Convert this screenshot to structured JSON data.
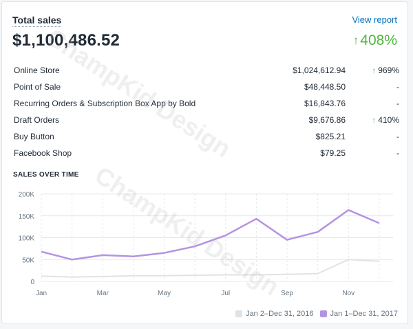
{
  "header": {
    "title": "Total sales",
    "view_report": "View report",
    "total": "$1,100,486.52",
    "growth": "408%"
  },
  "channels": [
    {
      "name": "Online Store",
      "amount": "$1,024,612.94",
      "change": "969%",
      "trend": "up"
    },
    {
      "name": "Point of Sale",
      "amount": "$48,448.50",
      "change": "-",
      "trend": "none"
    },
    {
      "name": "Recurring Orders & Subscription Box App by Bold",
      "amount": "$16,843.76",
      "change": "-",
      "trend": "none"
    },
    {
      "name": "Draft Orders",
      "amount": "$9,676.86",
      "change": "410%",
      "trend": "up"
    },
    {
      "name": "Buy Button",
      "amount": "$825.21",
      "change": "-",
      "trend": "none"
    },
    {
      "name": "Facebook Shop",
      "amount": "$79.25",
      "change": "-",
      "trend": "none"
    }
  ],
  "section_title": "SALES OVER TIME",
  "watermark": "ChampKid Design",
  "colors": {
    "accent_green": "#50b83c",
    "link_blue": "#006fbb",
    "series_2016": "#dfe3e8",
    "series_2017": "#b393e2"
  },
  "chart_data": {
    "type": "line",
    "x": [
      "Jan",
      "Feb",
      "Mar",
      "Apr",
      "May",
      "Jun",
      "Jul",
      "Aug",
      "Sep",
      "Oct",
      "Nov",
      "Dec"
    ],
    "x_tick_labels": [
      "Jan",
      "Mar",
      "May",
      "Jul",
      "Sep",
      "Nov"
    ],
    "y_tick_labels": [
      "0",
      "50K",
      "100K",
      "150K",
      "200K"
    ],
    "ylim": [
      0,
      200000
    ],
    "grid": true,
    "legend_position": "bottom-right",
    "series": [
      {
        "name": "Jan 2–Dec 31, 2016",
        "color": "#dfe3e8",
        "values": [
          12000,
          10000,
          11000,
          13000,
          13000,
          14000,
          15000,
          15000,
          16000,
          18000,
          50000,
          46000
        ]
      },
      {
        "name": "Jan 1–Dec 31, 2017",
        "color": "#b393e2",
        "values": [
          68000,
          50000,
          60000,
          57000,
          65000,
          80000,
          105000,
          143000,
          95000,
          113000,
          163000,
          133000
        ]
      }
    ]
  }
}
